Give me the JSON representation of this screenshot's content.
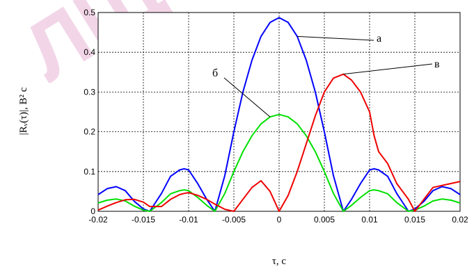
{
  "watermark": "ЛЩО",
  "chart_data": {
    "type": "line",
    "title": "",
    "xlabel": "τ, с",
    "ylabel": "|Rᵥ(τ)|, В² с",
    "xlim": [
      -0.02,
      0.02
    ],
    "ylim": [
      0,
      0.5
    ],
    "grid": true,
    "x_ticks": [
      "-0.02",
      "-0.015",
      "-0.01",
      "-0.005",
      "0",
      "0.005",
      "0.01",
      "0.015",
      "0.02"
    ],
    "y_ticks": [
      "0",
      "0.1",
      "0.2",
      "0.3",
      "0.4",
      "0.5"
    ],
    "x": [
      -0.02,
      -0.019,
      -0.018,
      -0.017,
      -0.016,
      -0.015,
      -0.0143,
      -0.013,
      -0.012,
      -0.011,
      -0.0105,
      -0.01,
      -0.009,
      -0.008,
      -0.0071,
      -0.006,
      -0.005,
      -0.004,
      -0.003,
      -0.002,
      -0.001,
      0,
      0.001,
      0.002,
      0.003,
      0.004,
      0.005,
      0.006,
      0.0071,
      0.008,
      0.009,
      0.01,
      0.0105,
      0.011,
      0.012,
      0.013,
      0.0143,
      0.015,
      0.016,
      0.017,
      0.018,
      0.019,
      0.02
    ],
    "series": [
      {
        "name": "а",
        "color": "#0000ff",
        "values": [
          0.042,
          0.057,
          0.062,
          0.052,
          0.025,
          0.006,
          0.0,
          0.045,
          0.088,
          0.104,
          0.107,
          0.104,
          0.07,
          0.03,
          0.0,
          0.09,
          0.2,
          0.3,
          0.38,
          0.44,
          0.475,
          0.487,
          0.475,
          0.44,
          0.38,
          0.3,
          0.2,
          0.09,
          0.0,
          0.03,
          0.07,
          0.104,
          0.107,
          0.104,
          0.088,
          0.045,
          0.0,
          0.006,
          0.025,
          0.052,
          0.062,
          0.057,
          0.042
        ]
      },
      {
        "name": "б",
        "color": "#00e000",
        "values": [
          0.021,
          0.028,
          0.031,
          0.026,
          0.013,
          0.003,
          0.0,
          0.022,
          0.044,
          0.052,
          0.054,
          0.052,
          0.035,
          0.015,
          0.0,
          0.045,
          0.1,
          0.15,
          0.19,
          0.22,
          0.2375,
          0.2435,
          0.2375,
          0.22,
          0.19,
          0.15,
          0.1,
          0.045,
          0.0,
          0.015,
          0.035,
          0.052,
          0.054,
          0.052,
          0.044,
          0.022,
          0.0,
          0.003,
          0.013,
          0.026,
          0.031,
          0.028,
          0.021
        ]
      },
      {
        "name": "в",
        "color": "#ee0000",
        "values": [
          0.003,
          0.013,
          0.022,
          0.029,
          0.03,
          0.023,
          0.012,
          0.012,
          0.03,
          0.042,
          0.045,
          0.047,
          0.04,
          0.03,
          0.018,
          0.005,
          0.0,
          0.03,
          0.06,
          0.077,
          0.05,
          0.0,
          0.04,
          0.1,
          0.17,
          0.24,
          0.3,
          0.335,
          0.345,
          0.33,
          0.3,
          0.25,
          0.19,
          0.15,
          0.12,
          0.07,
          0.03,
          0.0,
          0.03,
          0.06,
          0.065,
          0.07,
          0.075
        ]
      }
    ],
    "annotations": [
      {
        "label": "а",
        "series": 0
      },
      {
        "label": "б",
        "series": 1
      },
      {
        "label": "в",
        "series": 2
      }
    ]
  }
}
